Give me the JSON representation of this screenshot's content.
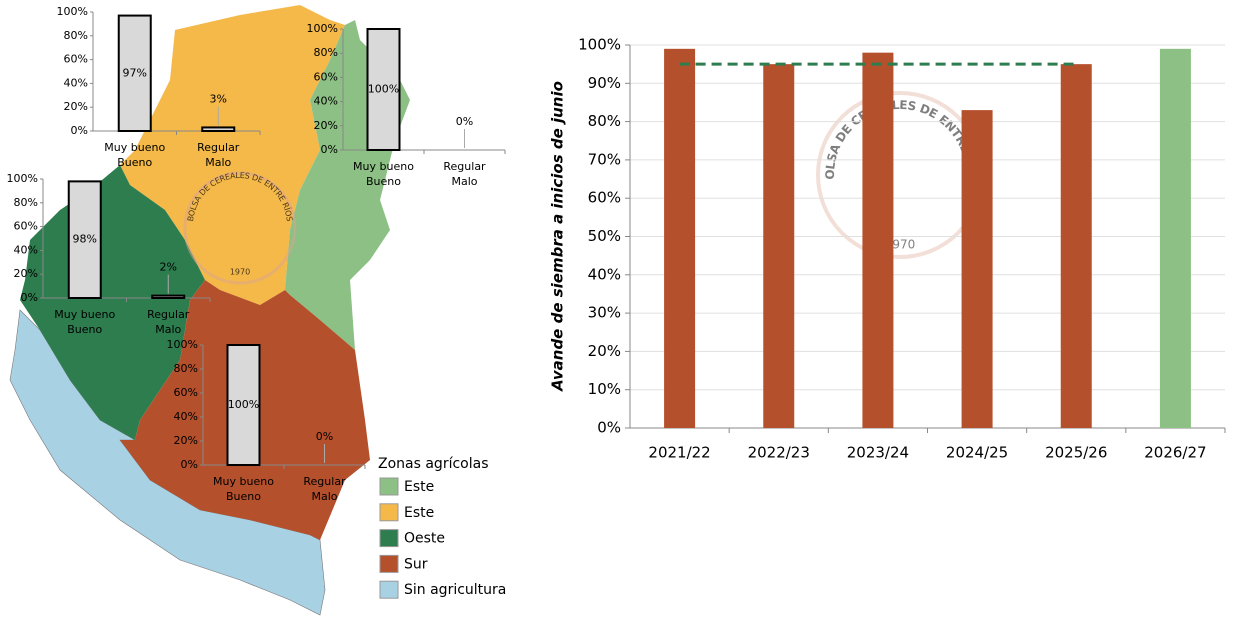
{
  "chart_data": [
    {
      "type": "bar",
      "categories": [
        [
          "Muy bueno",
          "Bueno"
        ],
        [
          "Regular",
          "Malo"
        ]
      ],
      "values": [
        97,
        3
      ],
      "value_labels": [
        "97%",
        "3%"
      ],
      "color": "#d9d9d9",
      "ylim": [
        0,
        100
      ],
      "yticks": [
        {
          "value": 0,
          "label": "0%"
        },
        {
          "value": 20,
          "label": "20%"
        },
        {
          "value": 40,
          "label": "40%"
        },
        {
          "value": 60,
          "label": "60%"
        },
        {
          "value": 80,
          "label": "80%"
        },
        {
          "value": 100,
          "label": "100%"
        }
      ]
    },
    {
      "type": "bar",
      "categories": [
        [
          "Muy bueno",
          "Bueno"
        ],
        [
          "Regular",
          "Malo"
        ]
      ],
      "values": [
        100,
        0
      ],
      "value_labels": [
        "100%",
        "0%"
      ],
      "color": "#d9d9d9",
      "ylim": [
        0,
        100
      ],
      "yticks": [
        {
          "value": 0,
          "label": "0%"
        },
        {
          "value": 20,
          "label": "20%"
        },
        {
          "value": 40,
          "label": "40%"
        },
        {
          "value": 60,
          "label": "60%"
        },
        {
          "value": 80,
          "label": "80%"
        },
        {
          "value": 100,
          "label": "100%"
        }
      ]
    },
    {
      "type": "bar",
      "categories": [
        [
          "Muy bueno",
          "Bueno"
        ],
        [
          "Regular",
          "Malo"
        ]
      ],
      "values": [
        98,
        2
      ],
      "value_labels": [
        "98%",
        "2%"
      ],
      "color": "#d9d9d9",
      "ylim": [
        0,
        100
      ],
      "yticks": [
        {
          "value": 0,
          "label": "0%"
        },
        {
          "value": 20,
          "label": "20%"
        },
        {
          "value": 40,
          "label": "40%"
        },
        {
          "value": 60,
          "label": "60%"
        },
        {
          "value": 80,
          "label": "80%"
        },
        {
          "value": 100,
          "label": "100%"
        }
      ]
    },
    {
      "type": "bar",
      "categories": [
        [
          "Muy bueno",
          "Bueno"
        ],
        [
          "Regular",
          "Malo"
        ]
      ],
      "values": [
        100,
        0
      ],
      "value_labels": [
        "100%",
        "0%"
      ],
      "color": "#d9d9d9",
      "ylim": [
        0,
        100
      ],
      "yticks": [
        {
          "value": 0,
          "label": "0%"
        },
        {
          "value": 20,
          "label": "20%"
        },
        {
          "value": 40,
          "label": "40%"
        },
        {
          "value": 60,
          "label": "60%"
        },
        {
          "value": 80,
          "label": "80%"
        },
        {
          "value": 100,
          "label": "100%"
        }
      ]
    },
    {
      "type": "bar",
      "ylabel": "Avande de siembra a inicios de junio",
      "categories": [
        "2021/22",
        "2022/23",
        "2023/24",
        "2024/25",
        "2025/26",
        "2026/27"
      ],
      "series": [
        {
          "type": "bar",
          "values": [
            99,
            95,
            98,
            83,
            95,
            99
          ],
          "colors": [
            "#b5502c",
            "#b5502c",
            "#b5502c",
            "#b5502c",
            "#b5502c",
            "#8cc084"
          ]
        },
        {
          "type": "line",
          "values": [
            95,
            95,
            95,
            95,
            95,
            null
          ],
          "color": "#2e7d4f",
          "dashed": true
        }
      ],
      "ylim": [
        0,
        100
      ],
      "yticks": [
        {
          "value": 0,
          "label": "0%"
        },
        {
          "value": 10,
          "label": "10%"
        },
        {
          "value": 20,
          "label": "20%"
        },
        {
          "value": 30,
          "label": "30%"
        },
        {
          "value": 40,
          "label": "40%"
        },
        {
          "value": 50,
          "label": "50%"
        },
        {
          "value": 60,
          "label": "60%"
        },
        {
          "value": 70,
          "label": "70%"
        },
        {
          "value": 80,
          "label": "80%"
        },
        {
          "value": 90,
          "label": "90%"
        },
        {
          "value": 100,
          "label": "100%"
        }
      ],
      "grid": true
    }
  ],
  "map": {
    "legend_title": "Zonas agrícolas",
    "zones": [
      {
        "name": "Este",
        "color": "#8cc084"
      },
      {
        "name": "Este",
        "color": "#f5b94a"
      },
      {
        "name": "Oeste",
        "color": "#2e7d4f"
      },
      {
        "name": "Sur",
        "color": "#b5502c"
      },
      {
        "name": "Sin agricultura",
        "color": "#a9d1e4"
      }
    ]
  },
  "watermark": {
    "text": "BOLSA DE CEREALES DE ENTRE RÍOS",
    "year": "1970"
  }
}
